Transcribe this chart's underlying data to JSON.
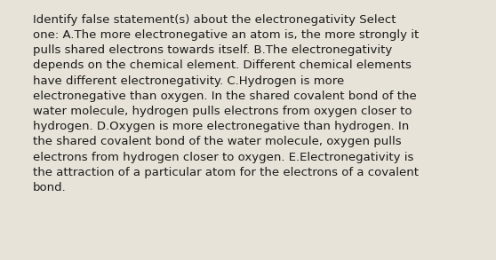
{
  "background_color": "#e8e3d8",
  "text_color": "#1a1a1a",
  "font_size": 9.5,
  "font_family": "DejaVu Sans",
  "lines": [
    "Identify false statement(s) about the electronegativity Select",
    "one: A.The more electronegative an atom is, the more strongly it",
    "pulls shared electrons towards itself. B.The electronegativity",
    "depends on the chemical element. Different chemical elements",
    "have different electronegativity. C.Hydrogen is more",
    "electronegative than oxygen. In the shared covalent bond of the",
    "water molecule, hydrogen pulls electrons from oxygen closer to",
    "hydrogen. D.Oxygen is more electronegative than hydrogen. In",
    "the shared covalent bond of the water molecule, oxygen pulls",
    "electrons from hydrogen closer to oxygen. E.Electronegativity is",
    "the attraction of a particular atom for the electrons of a covalent",
    "bond."
  ],
  "figsize": [
    5.58,
    2.93
  ],
  "dpi": 100
}
